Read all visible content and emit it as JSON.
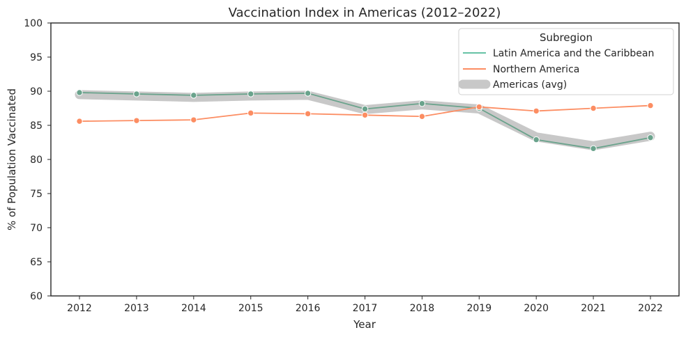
{
  "chart_data": {
    "type": "line",
    "title": "Vaccination Index in Americas (2012–2022)",
    "xlabel": "Year",
    "ylabel": "% of Population Vaccinated",
    "x": [
      "2012",
      "2013",
      "2014",
      "2015",
      "2016",
      "2017",
      "2018",
      "2019",
      "2020",
      "2021",
      "2022"
    ],
    "ylim": [
      60,
      100
    ],
    "yticks": [
      "60",
      "65",
      "70",
      "75",
      "80",
      "85",
      "90",
      "95",
      "100"
    ],
    "grid": false,
    "legend": {
      "title": "Subregion",
      "placement": "top-right"
    },
    "series": [
      {
        "name": "Americas (avg)",
        "style": "thick-band",
        "color": "#c8c8c8",
        "values": [
          89.5,
          89.3,
          89.1,
          89.3,
          89.4,
          87.3,
          88.0,
          87.4,
          83.3,
          82.0,
          83.4
        ]
      },
      {
        "name": "Latin America and the Caribbean",
        "color": "#66c2a5",
        "line_color": "#6aa38c",
        "values": [
          89.8,
          89.6,
          89.4,
          89.6,
          89.7,
          87.4,
          88.2,
          87.5,
          82.9,
          81.6,
          83.2
        ]
      },
      {
        "name": "Northern America",
        "color": "#fc8d62",
        "values": [
          85.6,
          85.7,
          85.8,
          86.8,
          86.7,
          86.5,
          86.3,
          87.7,
          87.1,
          87.5,
          87.9
        ]
      }
    ]
  }
}
